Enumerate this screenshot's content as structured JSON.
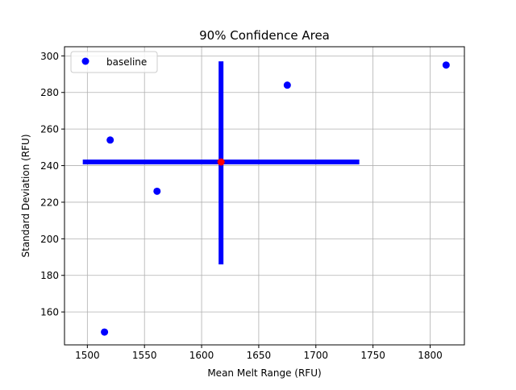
{
  "chart_data": {
    "type": "scatter",
    "title": "90% Confidence Area",
    "xlabel": "Mean Melt Range (RFU)",
    "ylabel": "Standard Deviation (RFU)",
    "xlim": [
      1480,
      1830
    ],
    "ylim": [
      142,
      305
    ],
    "x_ticks": [
      1500,
      1550,
      1600,
      1650,
      1700,
      1750,
      1800
    ],
    "y_ticks": [
      160,
      180,
      200,
      220,
      240,
      260,
      280,
      300
    ],
    "grid": true,
    "legend": {
      "position": "top-left",
      "entries": [
        "baseline"
      ]
    },
    "series": [
      {
        "name": "baseline",
        "color": "#0000ff",
        "marker": "circle",
        "x": [
          1515,
          1520,
          1561,
          1675,
          1814
        ],
        "y": [
          149,
          254,
          226,
          284,
          295
        ]
      }
    ],
    "center_point": {
      "x": 1617,
      "y": 242,
      "color": "#ff0000"
    },
    "confidence_bars": {
      "color": "#0000ff",
      "horizontal": {
        "x": [
          1496,
          1738
        ],
        "y": 242
      },
      "vertical": {
        "x": 1617,
        "y": [
          186,
          297
        ]
      }
    }
  }
}
